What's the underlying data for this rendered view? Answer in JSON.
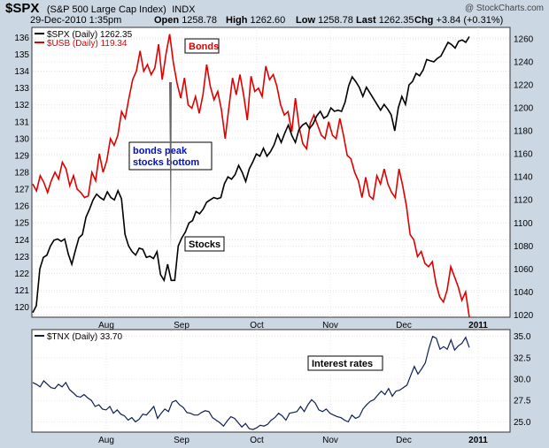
{
  "header": {
    "symbol": "$SPX",
    "description": "(S&P 500 Large Cap Index)",
    "exchange": "INDX",
    "watermark": "@ StockCharts.com",
    "date": "29-Dec-2010 1:35pm",
    "open_label": "Open",
    "open_value": "1258.78",
    "high_label": "High",
    "high_value": "1262.60",
    "low_label": "Low",
    "low_value": "1258.78",
    "last_label": "Last",
    "last_value": "1262.35",
    "chg_label": "Chg",
    "chg_value": "+3.84 (+0.31%)"
  },
  "colors": {
    "stocks": "#000000",
    "bonds": "#e00000",
    "tnx": "#0e1f55",
    "bonds_label": "#e00000",
    "peak_label": "#0010c0",
    "bg": "#ccd7e4"
  },
  "chart_data": [
    {
      "type": "line",
      "title": "$SPX (S&P 500 Large Cap Index) INDX",
      "legend": [
        "$SPX (Daily) 1262.35",
        "$USB (Daily) 119.34"
      ],
      "legend_position": "top-left",
      "grid": true,
      "x_labels": [
        "Aug",
        "Sep",
        "Oct",
        "Nov",
        "Dec",
        "2011"
      ],
      "left_axis": {
        "ylim": [
          119.4,
          136.6
        ],
        "ticks": [
          120,
          121,
          122,
          123,
          124,
          125,
          126,
          127,
          128,
          129,
          130,
          131,
          132,
          133,
          134,
          135,
          136
        ]
      },
      "right_axis": {
        "ylim": [
          1018,
          1270
        ],
        "ticks": [
          1020,
          1040,
          1060,
          1080,
          1100,
          1120,
          1140,
          1160,
          1180,
          1200,
          1220,
          1240,
          1260
        ]
      },
      "annotations": [
        "Bonds",
        "bonds peak",
        "stocks bottom",
        "Stocks"
      ],
      "series": [
        {
          "name": "$SPX (Daily) 1262.35",
          "axis": "right",
          "values": [
            1022,
            1028,
            1060,
            1070,
            1072,
            1080,
            1085,
            1086,
            1084,
            1086,
            1073,
            1064,
            1076,
            1087,
            1090,
            1105,
            1112,
            1120,
            1125,
            1122,
            1120,
            1127,
            1122,
            1120,
            1128,
            1121,
            1090,
            1080,
            1075,
            1072,
            1078,
            1077,
            1070,
            1071,
            1069,
            1075,
            1055,
            1050,
            1064,
            1050,
            1050,
            1080,
            1087,
            1092,
            1100,
            1102,
            1110,
            1108,
            1112,
            1118,
            1120,
            1122,
            1121,
            1122,
            1134,
            1140,
            1138,
            1142,
            1150,
            1144,
            1136,
            1147,
            1153,
            1160,
            1158,
            1165,
            1158,
            1162,
            1168,
            1177,
            1170,
            1178,
            1185,
            1176,
            1170,
            1181,
            1185,
            1187,
            1182,
            1186,
            1193,
            1197,
            1191,
            1193,
            1200,
            1197,
            1198,
            1197,
            1205,
            1219,
            1227,
            1223,
            1218,
            1210,
            1218,
            1213,
            1208,
            1203,
            1198,
            1203,
            1199,
            1194,
            1180,
            1200,
            1210,
            1203,
            1220,
            1223,
            1230,
            1228,
            1233,
            1242,
            1241,
            1240,
            1243,
            1245,
            1251,
            1257,
            1255,
            1252,
            1258,
            1259,
            1257,
            1262
          ]
        },
        {
          "name": "$USB (Daily) 119.34",
          "axis": "left",
          "values": [
            127.3,
            126.9,
            127.8,
            127.4,
            126.8,
            127.5,
            128.0,
            127.6,
            128.6,
            128.2,
            127.2,
            127.8,
            127.0,
            126.8,
            126.5,
            126.6,
            128.0,
            127.5,
            129.1,
            128.0,
            128.7,
            130.0,
            129.6,
            130.2,
            131.6,
            131.2,
            132.4,
            133.5,
            134.0,
            135.2,
            134.0,
            134.4,
            133.8,
            134.2,
            135.6,
            133.5,
            135.0,
            136.2,
            134.5,
            133.3,
            132.4,
            133.6,
            132.0,
            131.8,
            132.5,
            131.5,
            132.6,
            134.4,
            133.1,
            132.3,
            132.8,
            131.7,
            130.0,
            131.8,
            133.6,
            132.6,
            133.8,
            132.6,
            131.1,
            133.7,
            132.8,
            133.0,
            132.5,
            134.3,
            133.5,
            133.8,
            133.1,
            132.0,
            131.4,
            131.6,
            130.4,
            132.4,
            130.7,
            129.7,
            129.4,
            130.9,
            131.4,
            130.8,
            130.2,
            130.0,
            131.0,
            130.2,
            130.0,
            131.2,
            130.2,
            129.0,
            128.8,
            128.0,
            127.5,
            126.5,
            127.7,
            126.6,
            126.4,
            127.8,
            127.3,
            128.2,
            127.3,
            126.8,
            126.5,
            128.2,
            127.2,
            126.0,
            124.3,
            124.0,
            123.0,
            123.3,
            122.6,
            122.4,
            122.7,
            121.4,
            120.6,
            120.3,
            121.0,
            122.4,
            121.8,
            121.2,
            120.4,
            120.9,
            119.4
          ]
        }
      ]
    },
    {
      "type": "line",
      "legend": [
        "$TNX (Daily) 33.70"
      ],
      "legend_position": "top-left",
      "grid": true,
      "x_labels": [
        "Aug",
        "Sep",
        "Oct",
        "Nov",
        "Dec",
        "2011"
      ],
      "ylim": [
        23.8,
        35.8
      ],
      "ticks": [
        "25.0",
        "27.5",
        "30.0",
        "32.5",
        "35.0"
      ],
      "annotations": [
        "Interest rates"
      ],
      "series": [
        {
          "name": "$TNX (Daily) 33.70",
          "values": [
            29.6,
            29.4,
            29.1,
            29.8,
            29.4,
            29.0,
            28.9,
            29.4,
            29.1,
            29.6,
            28.8,
            28.4,
            28.0,
            27.9,
            28.2,
            27.8,
            27.5,
            26.8,
            27.0,
            26.5,
            26.4,
            26.8,
            26.0,
            26.4,
            25.9,
            25.7,
            25.2,
            25.5,
            25.0,
            25.3,
            25.9,
            25.8,
            26.3,
            26.8,
            25.4,
            26.0,
            26.5,
            26.2,
            27.3,
            27.5,
            27.0,
            26.7,
            26.1,
            26.0,
            25.8,
            25.8,
            26.1,
            26.3,
            26.2,
            25.5,
            25.2,
            24.9,
            24.5,
            25.1,
            25.6,
            25.4,
            24.9,
            24.4,
            24.8,
            24.2,
            24.1,
            24.3,
            24.6,
            24.5,
            24.7,
            25.2,
            25.5,
            26.0,
            25.7,
            25.2,
            26.0,
            26.1,
            26.2,
            26.8,
            26.2,
            27.0,
            27.6,
            27.2,
            26.4,
            26.2,
            26.5,
            26.0,
            25.8,
            25.6,
            25.5,
            25.2,
            25.0,
            25.8,
            25.4,
            25.6,
            26.5,
            27.0,
            27.4,
            27.6,
            28.1,
            28.6,
            28.2,
            28.9,
            28.0,
            28.6,
            28.7,
            29.0,
            29.3,
            30.4,
            31.5,
            30.6,
            31.2,
            31.9,
            33.6,
            35.0,
            34.8,
            33.5,
            33.8,
            33.5,
            34.6,
            33.4,
            33.9,
            34.2,
            34.9,
            33.7
          ]
        }
      ]
    }
  ]
}
